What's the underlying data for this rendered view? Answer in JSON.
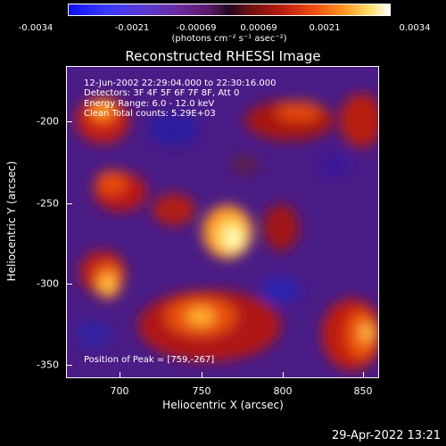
{
  "colorbar": {
    "ticks": [
      "-0.0034",
      "-0.0021",
      "-0.00069",
      "0.00069",
      "0.0021",
      "0.0034"
    ],
    "units": "(photons cm⁻² s⁻¹ asec⁻²)"
  },
  "image": {
    "title": "Reconstructed RHESSI Image",
    "info_lines": [
      "12-Jun-2002 22:29:04.000 to 22:30:16.000",
      "Detectors: 3F 4F 5F 6F 7F 8F, Att 0",
      "Energy Range: 6.0 - 12.0 keV",
      "Clean    Total counts: 5.29E+03"
    ],
    "peak_text": "Position of Peak = [759,-267]",
    "xlabel": "Heliocentric X (arcsec)",
    "ylabel": "Heliocentric Y (arcsec)",
    "xticks": [
      "700",
      "750",
      "800",
      "850"
    ],
    "yticks": [
      "-200",
      "-250",
      "-300",
      "-350"
    ]
  },
  "footer": {
    "timestamp": "29-Apr-2022 13:21"
  }
}
